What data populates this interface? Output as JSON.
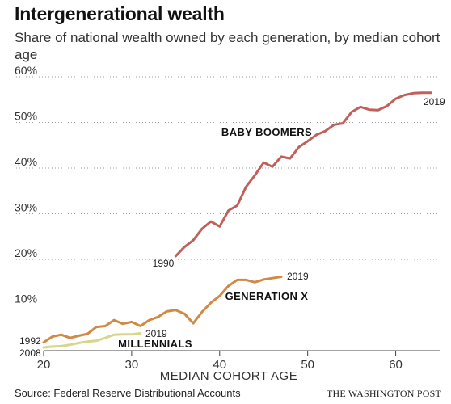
{
  "chart_data": {
    "type": "line",
    "title": "Intergenerational wealth",
    "subtitle": "Share of national wealth owned by each generation, by median cohort age",
    "xlabel": "MEDIAN COHORT AGE",
    "ylabel": "",
    "xlim": [
      20,
      65
    ],
    "ylim": [
      0,
      60
    ],
    "x_ticks": [
      20,
      30,
      40,
      50,
      60
    ],
    "x_tick_labels": [
      "20",
      "30",
      "40",
      "50",
      "60"
    ],
    "y_ticks": [
      10,
      20,
      30,
      40,
      50,
      60
    ],
    "y_tick_labels": [
      "10%",
      "20%",
      "30%",
      "40%",
      "50%",
      "60%"
    ],
    "grid": "horizontal",
    "series": [
      {
        "name": "BABY BOOMERS",
        "color": "#c0605a",
        "start_label": "1990",
        "end_label": "2019",
        "x": [
          35,
          36,
          37,
          38,
          39,
          40,
          41,
          42,
          43,
          44,
          45,
          46,
          47,
          48,
          49,
          50,
          51,
          52,
          53,
          54,
          55,
          56,
          57,
          58,
          59,
          60,
          61,
          62,
          63,
          64
        ],
        "y": [
          20.7,
          22.7,
          24.2,
          26.7,
          28.3,
          27.2,
          30.7,
          31.8,
          35.9,
          38.4,
          41.2,
          40.3,
          42.5,
          42.1,
          44.6,
          45.9,
          47.3,
          48.1,
          49.5,
          49.8,
          52.3,
          53.4,
          52.8,
          52.7,
          53.6,
          55.2,
          56.0,
          56.4,
          56.5,
          56.5
        ]
      },
      {
        "name": "GENERATION X",
        "color": "#d08a45",
        "start_label": "1992",
        "end_label": "2019",
        "x": [
          20,
          21,
          22,
          23,
          24,
          25,
          26,
          27,
          28,
          29,
          30,
          31,
          32,
          33,
          34,
          35,
          36,
          37,
          38,
          39,
          40,
          41,
          42,
          43,
          44,
          45,
          46,
          47
        ],
        "y": [
          1.8,
          3.1,
          3.5,
          2.8,
          3.3,
          3.7,
          5.2,
          5.4,
          6.7,
          5.9,
          6.3,
          5.4,
          6.7,
          7.4,
          8.6,
          8.9,
          8.1,
          6.0,
          8.5,
          10.5,
          12.0,
          14.2,
          15.5,
          15.5,
          15.0,
          15.6,
          15.9,
          16.2
        ]
      },
      {
        "name": "MILLENNIALS",
        "color": "#d9d58a",
        "start_label": "2008",
        "end_label": "2019",
        "x": [
          20,
          21,
          22,
          23,
          24,
          25,
          26,
          27,
          28,
          29,
          30,
          31
        ],
        "y": [
          0.7,
          0.9,
          1.0,
          1.3,
          1.7,
          2.0,
          2.2,
          2.8,
          3.5,
          3.6,
          3.6,
          3.8
        ]
      }
    ]
  },
  "footer": {
    "source": "Source: Federal Reserve Distributional Accounts",
    "credit": "THE WASHINGTON POST"
  }
}
